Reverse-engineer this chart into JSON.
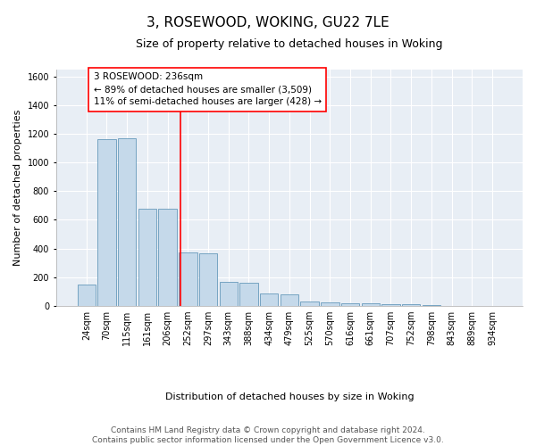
{
  "title": "3, ROSEWOOD, WOKING, GU22 7LE",
  "subtitle": "Size of property relative to detached houses in Woking",
  "xlabel": "Distribution of detached houses by size in Woking",
  "ylabel": "Number of detached properties",
  "bar_color": "#c5d9ea",
  "bar_edge_color": "#6699bb",
  "background_color": "#e8eef5",
  "grid_color": "white",
  "categories": [
    "24sqm",
    "70sqm",
    "115sqm",
    "161sqm",
    "206sqm",
    "252sqm",
    "297sqm",
    "343sqm",
    "388sqm",
    "434sqm",
    "479sqm",
    "525sqm",
    "570sqm",
    "616sqm",
    "661sqm",
    "707sqm",
    "752sqm",
    "798sqm",
    "843sqm",
    "889sqm",
    "934sqm"
  ],
  "values": [
    150,
    1165,
    1170,
    680,
    675,
    375,
    365,
    168,
    162,
    85,
    80,
    30,
    25,
    20,
    18,
    12,
    10,
    3,
    2,
    1,
    1
  ],
  "red_line_x": 4.65,
  "annotation_line1": "3 ROSEWOOD: 236sqm",
  "annotation_line2": "← 89% of detached houses are smaller (3,509)",
  "annotation_line3": "11% of semi-detached houses are larger (428) →",
  "ylim": [
    0,
    1650
  ],
  "yticks": [
    0,
    200,
    400,
    600,
    800,
    1000,
    1200,
    1400,
    1600
  ],
  "footnote_line1": "Contains HM Land Registry data © Crown copyright and database right 2024.",
  "footnote_line2": "Contains public sector information licensed under the Open Government Licence v3.0.",
  "title_fontsize": 11,
  "subtitle_fontsize": 9,
  "xlabel_fontsize": 8,
  "ylabel_fontsize": 8,
  "tick_fontsize": 7,
  "annotation_fontsize": 7.5,
  "footnote_fontsize": 6.5
}
